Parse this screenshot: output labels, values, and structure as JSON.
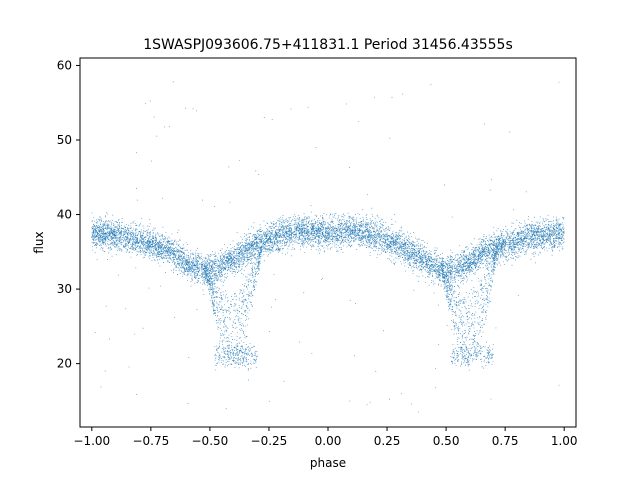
{
  "chart_data": {
    "type": "scatter",
    "title": "1SWASPJ093606.75+411831.1 Period 31456.43555s",
    "xlabel": "phase",
    "ylabel": "flux",
    "xlim": [
      -1.05,
      1.05
    ],
    "ylim": [
      11.5,
      61.0
    ],
    "xticks": [
      -1.0,
      -0.75,
      -0.5,
      -0.25,
      0.0,
      0.25,
      0.5,
      0.75,
      1.0
    ],
    "xtick_labels": [
      "−1.00",
      "−0.75",
      "−0.50",
      "−0.25",
      "0.00",
      "0.25",
      "0.50",
      "0.75",
      "1.00"
    ],
    "yticks": [
      20,
      30,
      40,
      50,
      60
    ],
    "ytick_labels": [
      "20",
      "30",
      "40",
      "50",
      "60"
    ],
    "grid": false,
    "legend": "none",
    "point_color": "#1f77b4",
    "series": [
      {
        "baseline_curve": {
          "phase": [
            0.0,
            0.1,
            0.2,
            0.3,
            0.4,
            0.45,
            0.5,
            0.55,
            0.6,
            0.65,
            0.7,
            0.8,
            0.9,
            1.0
          ],
          "flux": [
            37.5,
            37.8,
            37.2,
            36.0,
            34.0,
            33.0,
            32.5,
            32.8,
            33.5,
            34.8,
            35.5,
            36.5,
            37.2,
            37.5
          ]
        },
        "eclipse_branch": {
          "phase_range": [
            0.48,
            0.72
          ],
          "flux_min": 20.0,
          "flux_floor_phase": [
            0.52,
            0.7
          ]
        },
        "scatter_sd": 1.0,
        "outlier_range": [
          13.5,
          58.5
        ],
        "mirror_about_zero": true
      }
    ]
  }
}
